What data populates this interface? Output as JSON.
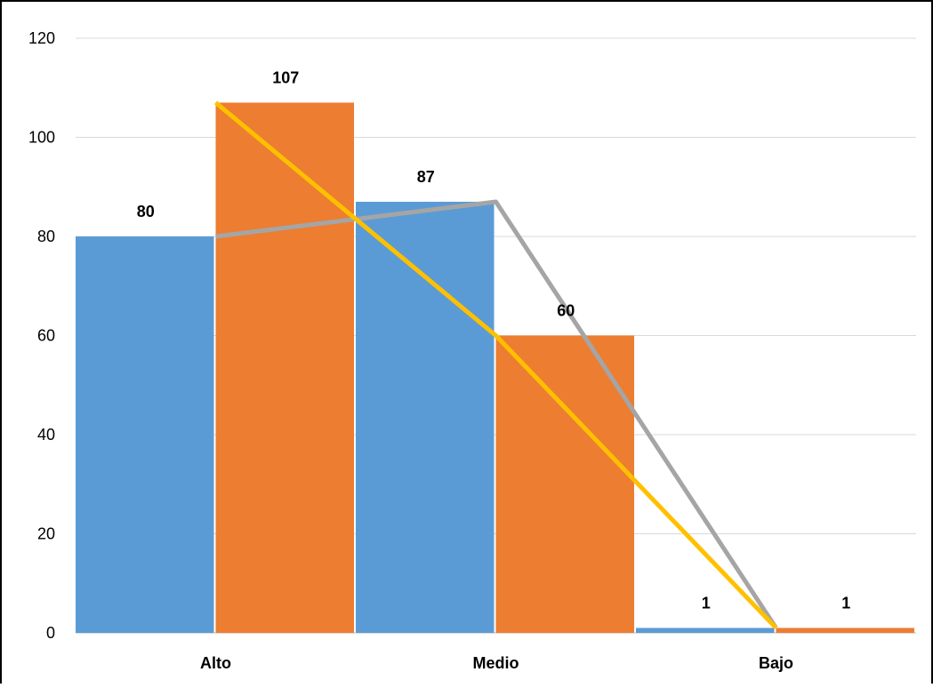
{
  "chart_data": {
    "type": "bar",
    "title": "",
    "xlabel": "",
    "ylabel": "",
    "categories": [
      "Alto",
      "Medio",
      "Bajo"
    ],
    "ylim": [
      0,
      120
    ],
    "yticks": [
      0,
      20,
      40,
      60,
      80,
      100,
      120
    ],
    "grid": true,
    "legend": "none",
    "series": [
      {
        "values": [
          80,
          87,
          1
        ],
        "color": "#5B9BD5"
      },
      {
        "values": [
          107,
          60,
          1
        ],
        "color": "#ED7D31"
      }
    ],
    "lines": [
      {
        "values": [
          80,
          87,
          1
        ],
        "color": "#A5A5A5",
        "anchor": "series-1-bar-right-edge"
      },
      {
        "values": [
          107,
          60,
          1
        ],
        "color": "#FFC000",
        "anchor": "series-2-bar-left-edge"
      }
    ],
    "data_labels": {
      "series_1": [
        "80",
        "87",
        "1"
      ],
      "series_2": [
        "107",
        "60",
        "1"
      ]
    }
  }
}
